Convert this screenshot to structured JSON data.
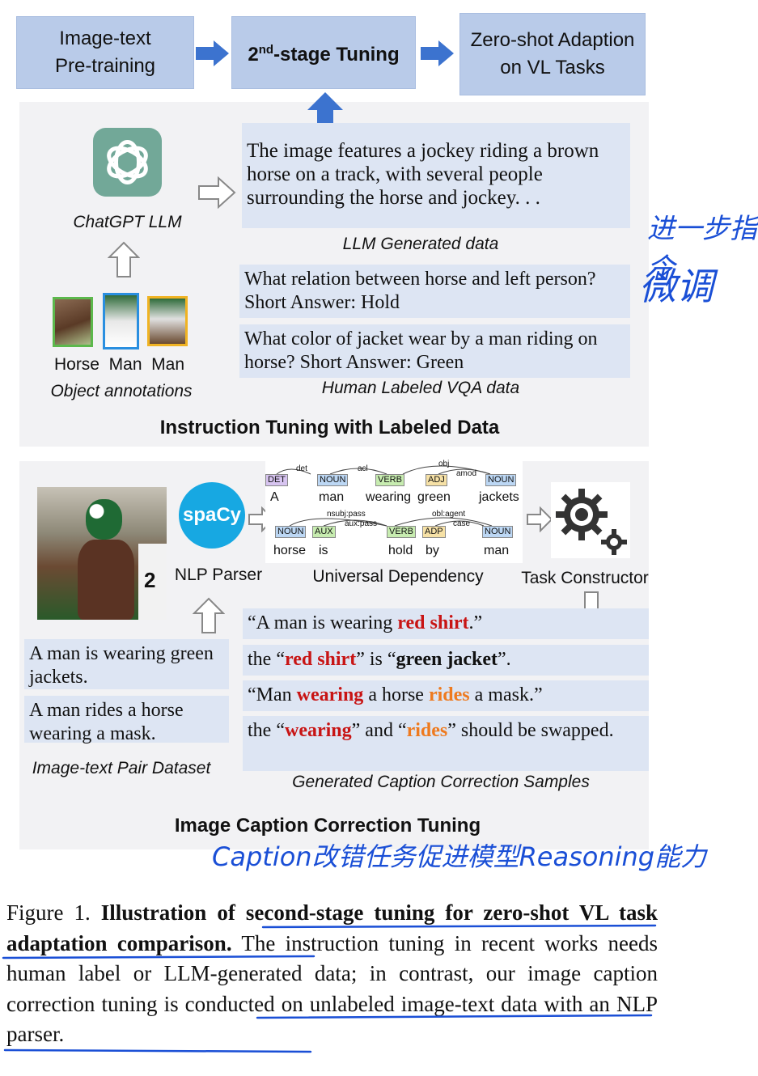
{
  "top": {
    "box1": "Image-text Pre-training",
    "box2_pre": "2",
    "box2_sup": "nd",
    "box2_post": "-stage Tuning",
    "box3": "Zero-shot Adaption on VL Tasks"
  },
  "instruction": {
    "chatgpt_label": "ChatGPT LLM",
    "llm_text": "The image features a jockey riding a brown horse on a track, with several people surrounding the horse and jockey. . .",
    "llm_label": "LLM Generated data",
    "vqa1": "What relation between horse and left person? Short Answer: Hold",
    "vqa2": "What color of jacket wear by a man riding on horse? Short Answer: Green",
    "vqa_label": "Human Labeled VQA data",
    "obj_labels": "Horse  Man  Man",
    "obj_caption": "Object annotations",
    "title": "Instruction Tuning with Labeled Data"
  },
  "correction": {
    "spacy_logo": "spaCy",
    "nlp_label": "NLP Parser",
    "ud_label": "Universal Dependency",
    "task_label": "Task Constructor",
    "dep_words_row1": [
      "A",
      "man",
      "wearing",
      "green",
      "jackets"
    ],
    "dep_tags_row1": [
      "DET",
      "NOUN",
      "VERB",
      "ADJ",
      "NOUN"
    ],
    "dep_arcs_row1": [
      "det",
      "acl",
      "obj",
      "amod"
    ],
    "dep_words_row2": [
      "horse",
      "is",
      "hold",
      "by",
      "man"
    ],
    "dep_tags_row2": [
      "NOUN",
      "AUX",
      "VERB",
      "ADP",
      "NOUN"
    ],
    "dep_arcs_row2": [
      "nsubj:pass",
      "aux:pass",
      "obl:agent",
      "case"
    ],
    "pair1": "A man is wearing green jackets.",
    "pair2": "A man rides a horse wearing a mask.",
    "pair_label": "Image-text Pair Dataset",
    "s1_a": "“A man is wearing ",
    "s1_b": "red shirt",
    "s1_c": ".”",
    "s2_a": "the “",
    "s2_b": "red shirt",
    "s2_c": "” is “",
    "s2_d": "green jacket",
    "s2_e": "”.",
    "s3_a": "“Man ",
    "s3_b": "wearing",
    "s3_c": " a horse ",
    "s3_d": "rides",
    "s3_e": " a mask.”",
    "s4_a": "the “",
    "s4_b": "wearing",
    "s4_c": "” and “",
    "s4_d": "rides",
    "s4_e": "” should be swapped.",
    "samples_label": "Generated Caption Correction Samples",
    "title": "Image Caption Correction Tuning"
  },
  "annotations": {
    "note1": "进一步指令",
    "note2": "微调",
    "note3": "Caption改错任务促进模型Reasoning能力"
  },
  "figure_caption": {
    "label": "Figure 1.",
    "bold": "Illustration of second-stage tuning for zero-shot VL task adaptation comparison.",
    "body": "The instruction tuning in recent works needs human label or LLM-generated data; in contrast, our image caption correction tuning is conducted on unlabeled image-text data with an NLP parser."
  },
  "colors": {
    "box_blue": "#b9cbe9",
    "arrow_blue": "#3c73cf",
    "text_red": "#c81414",
    "text_orange": "#ee7a1f",
    "ink_blue": "#1a4fd6"
  }
}
